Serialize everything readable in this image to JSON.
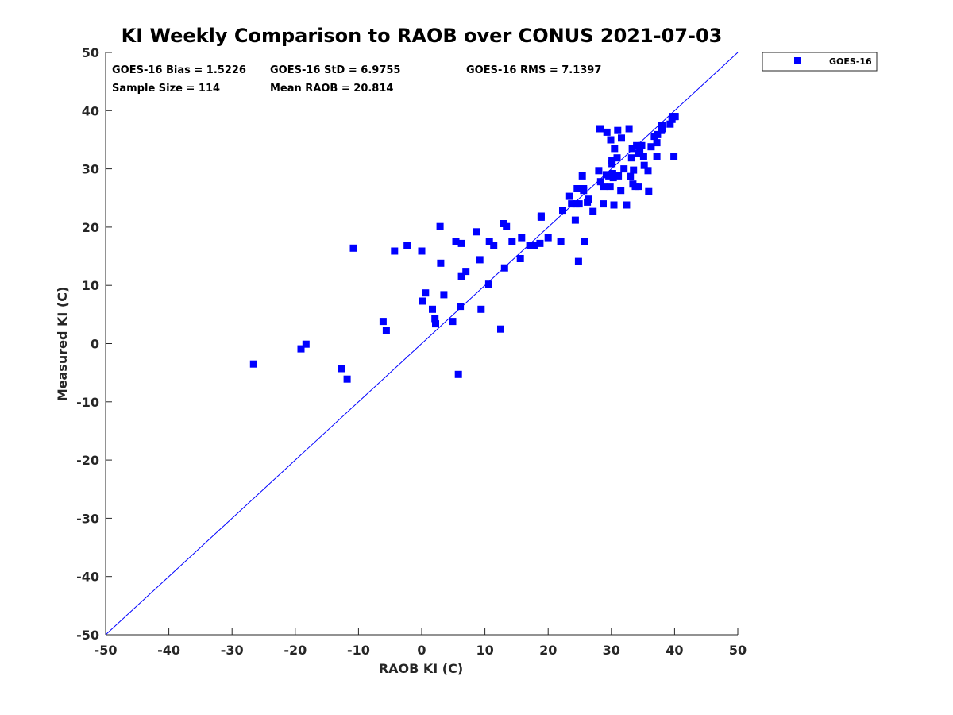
{
  "chart_data": {
    "type": "scatter",
    "title": "KI Weekly Comparison to RAOB over CONUS 2021-07-03",
    "xlabel": "RAOB KI (C)",
    "ylabel": "Measured KI (C)",
    "xlim": [
      -50,
      50
    ],
    "ylim": [
      -50,
      50
    ],
    "xticks": [
      -50,
      -40,
      -30,
      -20,
      -10,
      0,
      10,
      20,
      30,
      40,
      50
    ],
    "yticks": [
      -50,
      -40,
      -30,
      -20,
      -10,
      0,
      10,
      20,
      30,
      40,
      50
    ],
    "grid": false,
    "legend_position": "outside-top-right",
    "reference_line": {
      "name": "1:1 line",
      "from": [
        -50,
        -50
      ],
      "to": [
        50,
        50
      ],
      "color": "#0000ff"
    },
    "stats": [
      "GOES-16 Bias = 1.5226",
      "GOES-16 StD = 6.9755",
      "GOES-16 RMS = 7.1397",
      "Sample Size = 114",
      "Mean RAOB = 20.814"
    ],
    "series": [
      {
        "name": "GOES-16",
        "color": "#0000ff",
        "marker": "square",
        "points": [
          [
            -26.6,
            -3.5
          ],
          [
            -19.1,
            -0.9
          ],
          [
            -18.3,
            -0.1
          ],
          [
            -12.7,
            -4.3
          ],
          [
            -11.8,
            -6.1
          ],
          [
            -10.8,
            16.4
          ],
          [
            -6.1,
            3.8
          ],
          [
            -5.6,
            2.3
          ],
          [
            -4.3,
            15.9
          ],
          [
            -2.3,
            16.9
          ],
          [
            0.0,
            15.9
          ],
          [
            0.1,
            7.3
          ],
          [
            0.6,
            8.7
          ],
          [
            1.7,
            5.9
          ],
          [
            2.1,
            4.3
          ],
          [
            2.2,
            3.4
          ],
          [
            2.9,
            20.1
          ],
          [
            3.0,
            13.8
          ],
          [
            3.5,
            8.4
          ],
          [
            4.9,
            3.8
          ],
          [
            5.4,
            17.5
          ],
          [
            5.8,
            -5.3
          ],
          [
            6.1,
            6.4
          ],
          [
            6.3,
            17.2
          ],
          [
            6.3,
            11.5
          ],
          [
            7.0,
            12.4
          ],
          [
            8.7,
            19.2
          ],
          [
            9.2,
            14.4
          ],
          [
            9.4,
            5.9
          ],
          [
            10.6,
            10.2
          ],
          [
            10.7,
            17.5
          ],
          [
            11.4,
            16.9
          ],
          [
            12.5,
            2.5
          ],
          [
            13.0,
            20.6
          ],
          [
            13.1,
            13.0
          ],
          [
            13.4,
            20.1
          ],
          [
            14.3,
            17.5
          ],
          [
            15.6,
            14.6
          ],
          [
            15.8,
            18.2
          ],
          [
            17.1,
            16.9
          ],
          [
            17.8,
            16.9
          ],
          [
            18.7,
            17.2
          ],
          [
            18.9,
            21.9
          ],
          [
            18.9,
            21.7
          ],
          [
            20.0,
            18.2
          ],
          [
            22.0,
            17.5
          ],
          [
            22.3,
            22.9
          ],
          [
            23.4,
            25.3
          ],
          [
            23.7,
            24.0
          ],
          [
            24.3,
            21.2
          ],
          [
            24.4,
            24.0
          ],
          [
            24.6,
            26.6
          ],
          [
            24.8,
            14.1
          ],
          [
            24.9,
            24.0
          ],
          [
            25.4,
            28.8
          ],
          [
            25.6,
            26.6
          ],
          [
            25.6,
            26.3
          ],
          [
            25.8,
            17.5
          ],
          [
            26.2,
            24.3
          ],
          [
            26.4,
            24.8
          ],
          [
            27.1,
            22.7
          ],
          [
            28.0,
            29.7
          ],
          [
            28.2,
            36.9
          ],
          [
            28.3,
            27.8
          ],
          [
            28.7,
            24.0
          ],
          [
            28.8,
            27.0
          ],
          [
            29.2,
            29.0
          ],
          [
            29.3,
            36.3
          ],
          [
            29.6,
            28.8
          ],
          [
            29.8,
            27.0
          ],
          [
            29.9,
            35.0
          ],
          [
            30.1,
            31.4
          ],
          [
            30.1,
            30.9
          ],
          [
            30.2,
            29.2
          ],
          [
            30.3,
            28.5
          ],
          [
            30.4,
            23.8
          ],
          [
            30.5,
            33.5
          ],
          [
            30.9,
            31.9
          ],
          [
            31.0,
            36.6
          ],
          [
            31.1,
            28.8
          ],
          [
            31.5,
            26.3
          ],
          [
            31.6,
            35.3
          ],
          [
            32.0,
            30.0
          ],
          [
            32.4,
            23.8
          ],
          [
            32.8,
            36.9
          ],
          [
            33.0,
            28.7
          ],
          [
            33.2,
            31.9
          ],
          [
            33.3,
            33.5
          ],
          [
            33.4,
            27.4
          ],
          [
            33.5,
            29.8
          ],
          [
            33.8,
            27.0
          ],
          [
            34.0,
            34.0
          ],
          [
            34.3,
            32.7
          ],
          [
            34.3,
            27.0
          ],
          [
            34.5,
            33.3
          ],
          [
            34.8,
            34.0
          ],
          [
            35.1,
            32.2
          ],
          [
            35.2,
            30.6
          ],
          [
            35.8,
            29.7
          ],
          [
            35.9,
            26.1
          ],
          [
            36.3,
            33.8
          ],
          [
            36.8,
            35.6
          ],
          [
            37.2,
            34.5
          ],
          [
            37.2,
            32.2
          ],
          [
            37.3,
            35.9
          ],
          [
            37.9,
            36.6
          ],
          [
            38.0,
            37.4
          ],
          [
            38.1,
            36.9
          ],
          [
            39.3,
            37.7
          ],
          [
            39.6,
            38.5
          ],
          [
            39.7,
            39.0
          ],
          [
            40.0,
            39.0
          ],
          [
            39.9,
            32.2
          ],
          [
            40.1,
            39.0
          ]
        ]
      }
    ]
  }
}
